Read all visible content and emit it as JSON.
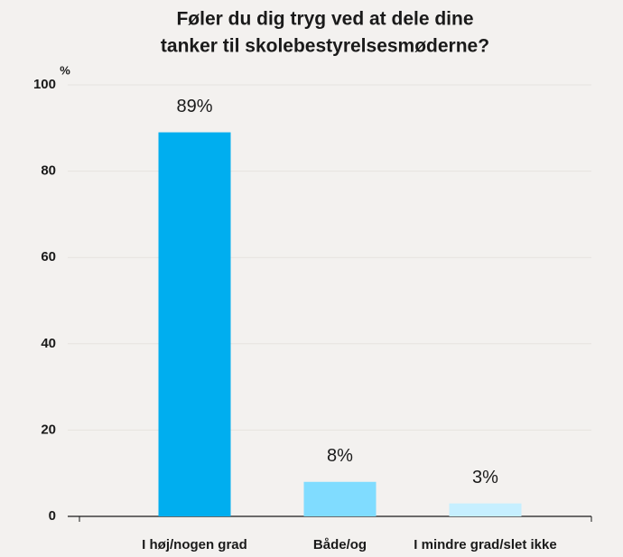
{
  "chart_data": {
    "type": "bar",
    "title": [
      "Føler du dig tryg ved at dele dine",
      "tanker til skolebestyrelsesmøderne?"
    ],
    "ylabel": "%",
    "categories": [
      "I høj/nogen grad",
      "Både/og",
      "I mindre grad/slet ikke"
    ],
    "values": [
      89,
      8,
      3
    ],
    "value_labels": [
      "89%",
      "8%",
      "3%"
    ],
    "colors": [
      "#00aeef",
      "#80dcff",
      "#c6efff"
    ],
    "ylim": [
      0,
      100
    ],
    "yticks": [
      0,
      20,
      40,
      60,
      80,
      100
    ],
    "grid": true
  }
}
